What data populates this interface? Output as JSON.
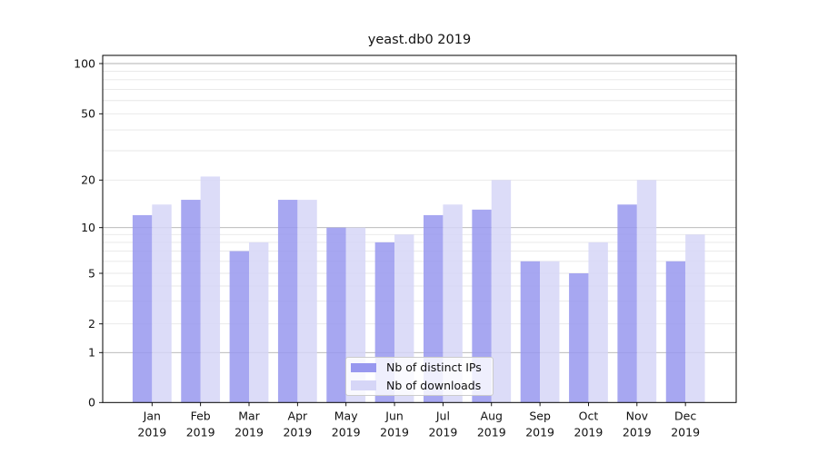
{
  "title": "yeast.db0 2019",
  "chart_data": {
    "type": "bar",
    "title": "yeast.db0 2019",
    "categories": [
      "Jan",
      "Feb",
      "Mar",
      "Apr",
      "May",
      "Jun",
      "Jul",
      "Aug",
      "Sep",
      "Oct",
      "Nov",
      "Dec"
    ],
    "x_year_label": "2019",
    "series": [
      {
        "name": "Nb of distinct IPs",
        "color": "#9898ef",
        "values": [
          12,
          15,
          7,
          15,
          10,
          8,
          12,
          13,
          6,
          5,
          14,
          6
        ]
      },
      {
        "name": "Nb of downloads",
        "color": "#d6d6f7",
        "values": [
          14,
          21,
          8,
          15,
          10,
          9,
          14,
          20,
          6,
          8,
          20,
          9
        ]
      }
    ],
    "yscale": "symlog",
    "y_ticks": [
      0,
      1,
      2,
      5,
      10,
      20,
      50,
      100
    ],
    "ylim": [
      0,
      110
    ],
    "grid": true,
    "legend_position": "lower center"
  }
}
